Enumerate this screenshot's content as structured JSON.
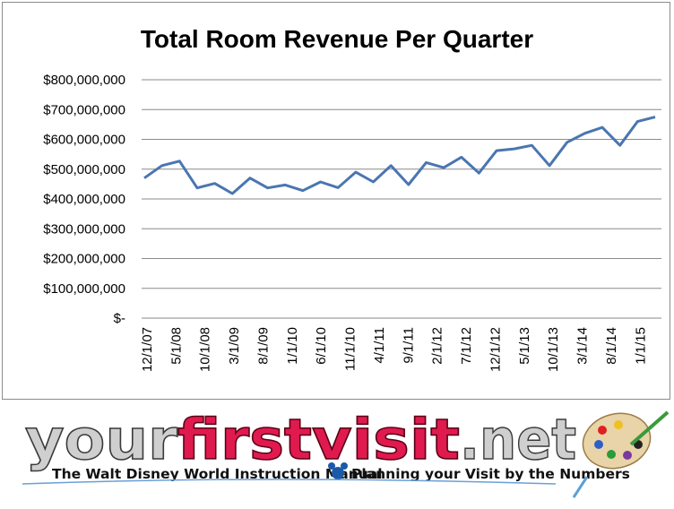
{
  "chart_data": {
    "type": "line",
    "title": "Total Room Revenue Per Quarter",
    "xlabel": "",
    "ylabel": "",
    "ylim": [
      0,
      800000000
    ],
    "yticks": [
      0,
      100000000,
      200000000,
      300000000,
      400000000,
      500000000,
      600000000,
      700000000,
      800000000
    ],
    "ytick_labels": [
      "$-",
      "$100,000,000",
      "$200,000,000",
      "$300,000,000",
      "$400,000,000",
      "$500,000,000",
      "$600,000,000",
      "$700,000,000",
      "$800,000,000"
    ],
    "xtick_labels": [
      "12/1/07",
      "5/1/08",
      "10/1/08",
      "3/1/09",
      "8/1/09",
      "1/1/10",
      "6/1/10",
      "11/1/10",
      "4/1/11",
      "9/1/11",
      "2/1/12",
      "7/1/12",
      "12/1/12",
      "5/1/13",
      "10/1/13",
      "3/1/14",
      "8/1/14",
      "1/1/15"
    ],
    "grid": "horizontal",
    "legend": "none",
    "line_color": "#4a76b0",
    "series": [
      {
        "values": [
          470000000,
          512000000,
          527000000,
          437000000,
          452000000,
          418000000,
          470000000,
          437000000,
          447000000,
          428000000,
          457000000,
          438000000,
          490000000,
          457000000,
          512000000,
          448000000,
          522000000,
          505000000,
          540000000,
          487000000,
          562000000,
          568000000,
          580000000,
          512000000,
          590000000,
          620000000,
          640000000,
          580000000,
          660000000,
          675000000
        ]
      }
    ]
  },
  "banner": {
    "brand_part1": "your",
    "brand_part2": "first",
    "brand_part3": "visit",
    "brand_part4": ".net",
    "tagline_left": "The Walt Disney World Instruction Manual",
    "tagline_right": "Planning your Visit by the Numbers",
    "icon": "paint-palette-icon"
  }
}
